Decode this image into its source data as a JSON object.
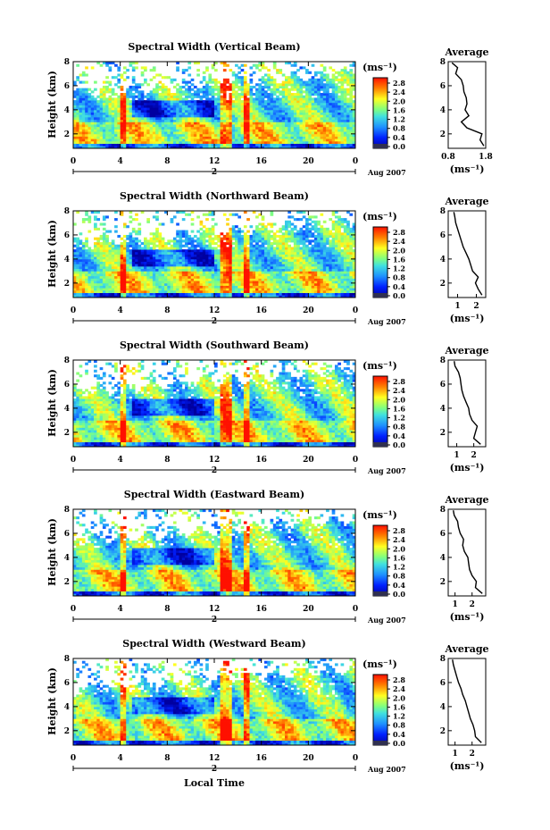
{
  "figure": {
    "xlabel": "Local Time",
    "date_label": "Aug 2007",
    "day_label": "2",
    "height_axis_label": "Height (km)",
    "colorbar_unit": "(ms⁻¹)",
    "avg_title": "Average",
    "avg_unit": "(ms⁻¹)"
  },
  "chart_data": [
    {
      "type": "heatmap",
      "title": "Spectral Width (Vertical Beam)",
      "x": [
        0,
        4,
        8,
        12,
        16,
        20,
        0
      ],
      "ylabel": "Height (km)",
      "yticks": [
        2,
        4,
        6,
        8
      ],
      "ylim": [
        0.8,
        8
      ],
      "colorbar": {
        "label": "(ms⁻¹)",
        "ticks": [
          "0.0",
          "0.4",
          "0.8",
          "1.2",
          "1.6",
          "2.0",
          "2.4",
          "2.8"
        ],
        "range": [
          0,
          3.0
        ]
      },
      "average": {
        "title": "Average",
        "xlabel": "(ms⁻¹)",
        "xticks": [
          "0.8",
          "1.8"
        ],
        "xlim": [
          0.8,
          1.8
        ],
        "height": [
          1.0,
          1.5,
          2.0,
          2.5,
          3.0,
          3.5,
          4.0,
          4.5,
          5.0,
          5.5,
          6.0,
          6.5,
          7.0,
          7.5,
          7.9
        ],
        "value": [
          1.75,
          1.65,
          1.7,
          1.3,
          1.15,
          1.35,
          1.25,
          1.3,
          1.28,
          1.22,
          1.2,
          1.15,
          1.0,
          1.05,
          0.9
        ]
      }
    },
    {
      "type": "heatmap",
      "title": "Spectral Width (Northward Beam)",
      "x": [
        0,
        4,
        8,
        12,
        16,
        20,
        0
      ],
      "ylabel": "Height (km)",
      "yticks": [
        2,
        4,
        6,
        8
      ],
      "ylim": [
        0.8,
        8
      ],
      "colorbar": {
        "label": "(ms⁻¹)",
        "ticks": [
          "0.0",
          "0.4",
          "0.8",
          "1.2",
          "1.6",
          "2.0",
          "2.4",
          "2.8"
        ],
        "range": [
          0,
          3.0
        ]
      },
      "average": {
        "title": "Average",
        "xlabel": "(ms⁻¹)",
        "xticks": [
          "1",
          "2"
        ],
        "xlim": [
          0.5,
          2.5
        ],
        "height": [
          1.0,
          1.5,
          2.0,
          2.5,
          3.0,
          3.5,
          4.0,
          4.5,
          5.0,
          5.5,
          6.0,
          6.5,
          7.0,
          7.5,
          7.9
        ],
        "value": [
          2.3,
          2.1,
          1.95,
          2.1,
          1.8,
          1.7,
          1.6,
          1.45,
          1.3,
          1.2,
          1.1,
          1.0,
          0.9,
          0.85,
          0.8
        ]
      }
    },
    {
      "type": "heatmap",
      "title": "Spectral Width (Southward Beam)",
      "x": [
        0,
        4,
        8,
        12,
        16,
        20,
        0
      ],
      "ylabel": "Height (km)",
      "yticks": [
        2,
        4,
        6,
        8
      ],
      "ylim": [
        0.8,
        8
      ],
      "colorbar": {
        "label": "(ms⁻¹)",
        "ticks": [
          "0.0",
          "0.4",
          "0.8",
          "1.2",
          "1.6",
          "2.0",
          "2.4",
          "2.8"
        ],
        "range": [
          0,
          3.0
        ]
      },
      "average": {
        "title": "Average",
        "xlabel": "(ms⁻¹)",
        "xticks": [
          "1",
          "2"
        ],
        "xlim": [
          0.5,
          2.7
        ],
        "height": [
          1.0,
          1.5,
          2.0,
          2.5,
          3.0,
          3.5,
          4.0,
          4.5,
          5.0,
          5.5,
          6.0,
          6.5,
          7.0,
          7.5,
          7.9
        ],
        "value": [
          2.4,
          2.0,
          2.1,
          2.2,
          1.9,
          1.75,
          1.7,
          1.55,
          1.4,
          1.3,
          1.25,
          1.2,
          1.1,
          0.9,
          0.85
        ]
      }
    },
    {
      "type": "heatmap",
      "title": "Spectral Width (Eastward Beam)",
      "x": [
        0,
        4,
        8,
        12,
        16,
        20,
        0
      ],
      "ylabel": "Height (km)",
      "yticks": [
        2,
        4,
        6,
        8
      ],
      "ylim": [
        0.8,
        8
      ],
      "colorbar": {
        "label": "(ms⁻¹)",
        "ticks": [
          "0.0",
          "0.4",
          "0.8",
          "1.2",
          "1.6",
          "2.0",
          "2.4",
          "2.8"
        ],
        "range": [
          0,
          3.0
        ]
      },
      "average": {
        "title": "Average",
        "xlabel": "(ms⁻¹)",
        "xticks": [
          "1",
          "2"
        ],
        "xlim": [
          0.6,
          2.8
        ],
        "height": [
          1.0,
          1.5,
          2.0,
          2.5,
          3.0,
          3.5,
          4.0,
          4.5,
          5.0,
          5.5,
          6.0,
          6.5,
          7.0,
          7.5,
          7.9
        ],
        "value": [
          2.6,
          2.2,
          2.25,
          2.0,
          1.85,
          1.8,
          1.75,
          1.55,
          1.45,
          1.5,
          1.3,
          1.2,
          1.15,
          0.95,
          0.9
        ]
      }
    },
    {
      "type": "heatmap",
      "title": "Spectral Width (Westward Beam)",
      "x": [
        0,
        4,
        8,
        12,
        16,
        20,
        0
      ],
      "xlabel": "Local Time",
      "ylabel": "Height (km)",
      "yticks": [
        2,
        4,
        6,
        8
      ],
      "ylim": [
        0.8,
        8
      ],
      "colorbar": {
        "label": "(ms⁻¹)",
        "ticks": [
          "0.0",
          "0.4",
          "0.8",
          "1.2",
          "1.6",
          "2.0",
          "2.4",
          "2.8"
        ],
        "range": [
          0,
          3.0
        ]
      },
      "average": {
        "title": "Average",
        "xlabel": "(ms⁻¹)",
        "xticks": [
          "1",
          "2"
        ],
        "xlim": [
          0.6,
          2.8
        ],
        "height": [
          1.0,
          1.5,
          2.0,
          2.5,
          3.0,
          3.5,
          4.0,
          4.5,
          5.0,
          5.5,
          6.0,
          6.5,
          7.0,
          7.5,
          7.9
        ],
        "value": [
          2.55,
          2.2,
          2.15,
          2.05,
          1.9,
          1.8,
          1.7,
          1.6,
          1.45,
          1.35,
          1.2,
          1.1,
          1.0,
          0.9,
          0.85
        ]
      }
    }
  ]
}
